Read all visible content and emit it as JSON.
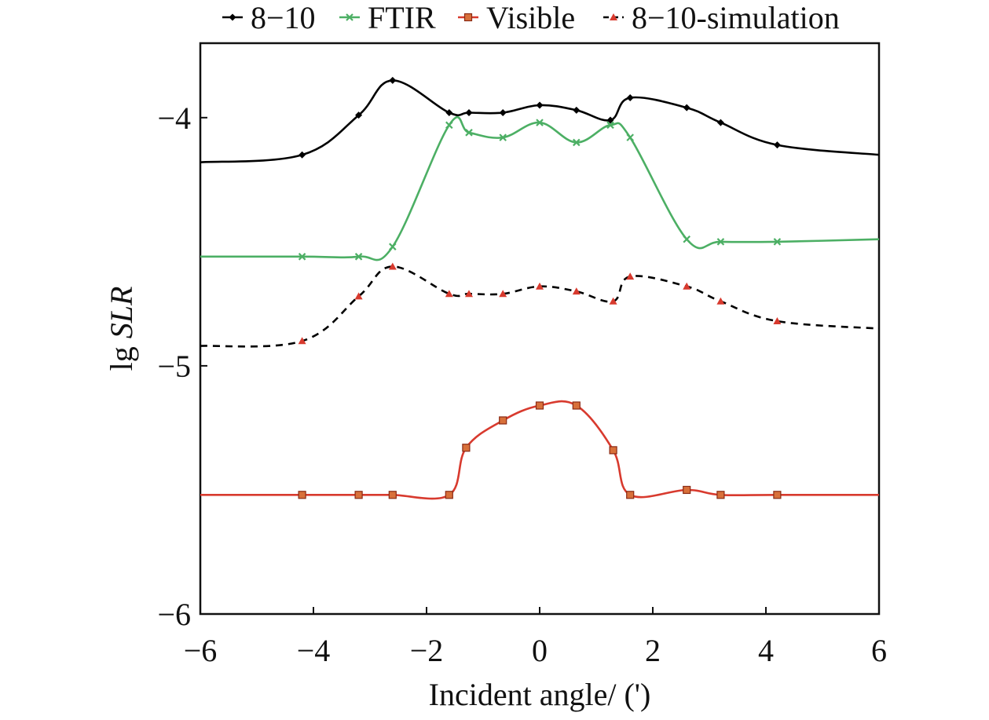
{
  "chart_data": {
    "type": "line",
    "xlabel": "Incident angle/ (')",
    "ylabel": "lg SLR",
    "ylabel_parts": {
      "prefix": "lg ",
      "italic": "SLR"
    },
    "xlim": [
      -6,
      6
    ],
    "ylim": [
      -6,
      -3.7
    ],
    "xticks": [
      -6,
      -4,
      -2,
      0,
      2,
      4,
      6
    ],
    "yticks": [
      -6,
      -5,
      -4
    ],
    "xtick_labels": [
      "−6",
      "−4",
      "−2",
      "0",
      "2",
      "4",
      "6"
    ],
    "ytick_labels": [
      "−6",
      "−5",
      "−4"
    ],
    "grid": false,
    "legend_position": "top",
    "series": [
      {
        "name": "8−10",
        "color": "#000000",
        "marker": "diamond",
        "dashed": false,
        "x": [
          -6,
          -4.2,
          -3.2,
          -2.6,
          -1.6,
          -1.25,
          -0.65,
          0,
          0.65,
          1.25,
          1.6,
          2.6,
          3.2,
          4.2,
          6
        ],
        "y": [
          -4.18,
          -4.15,
          -3.99,
          -3.85,
          -3.98,
          -3.98,
          -3.98,
          -3.95,
          -3.97,
          -4.01,
          -3.92,
          -3.96,
          -4.02,
          -4.11,
          -4.15
        ]
      },
      {
        "name": "FTIR",
        "color": "#4caf64",
        "marker": "x",
        "dashed": false,
        "x": [
          -6,
          -4.2,
          -3.2,
          -2.6,
          -1.6,
          -1.25,
          -0.65,
          0,
          0.65,
          1.25,
          1.6,
          2.6,
          3.2,
          4.2,
          6
        ],
        "y": [
          -4.56,
          -4.56,
          -4.56,
          -4.52,
          -4.03,
          -4.06,
          -4.08,
          -4.02,
          -4.1,
          -4.03,
          -4.08,
          -4.49,
          -4.5,
          -4.5,
          -4.49
        ]
      },
      {
        "name": "Visible",
        "color": "#d83a2e",
        "marker": "square",
        "dashed": false,
        "x": [
          -6,
          -4.2,
          -3.2,
          -2.6,
          -1.6,
          -1.3,
          -0.65,
          0,
          0.65,
          1.3,
          1.6,
          2.6,
          3.2,
          4.2,
          6
        ],
        "y": [
          -5.52,
          -5.52,
          -5.52,
          -5.52,
          -5.52,
          -5.33,
          -5.22,
          -5.16,
          -5.16,
          -5.34,
          -5.52,
          -5.5,
          -5.52,
          -5.52,
          -5.52
        ]
      },
      {
        "name": "8−10-simulation",
        "color": "#000000",
        "marker": "triangle",
        "marker_color": "#d83a2e",
        "dashed": true,
        "x": [
          -6,
          -4.2,
          -3.2,
          -2.6,
          -1.6,
          -1.25,
          -0.65,
          0,
          0.65,
          1.3,
          1.6,
          2.6,
          3.2,
          4.2,
          6
        ],
        "y": [
          -4.92,
          -4.9,
          -4.72,
          -4.6,
          -4.71,
          -4.71,
          -4.71,
          -4.68,
          -4.7,
          -4.74,
          -4.64,
          -4.68,
          -4.74,
          -4.82,
          -4.85
        ]
      }
    ]
  }
}
